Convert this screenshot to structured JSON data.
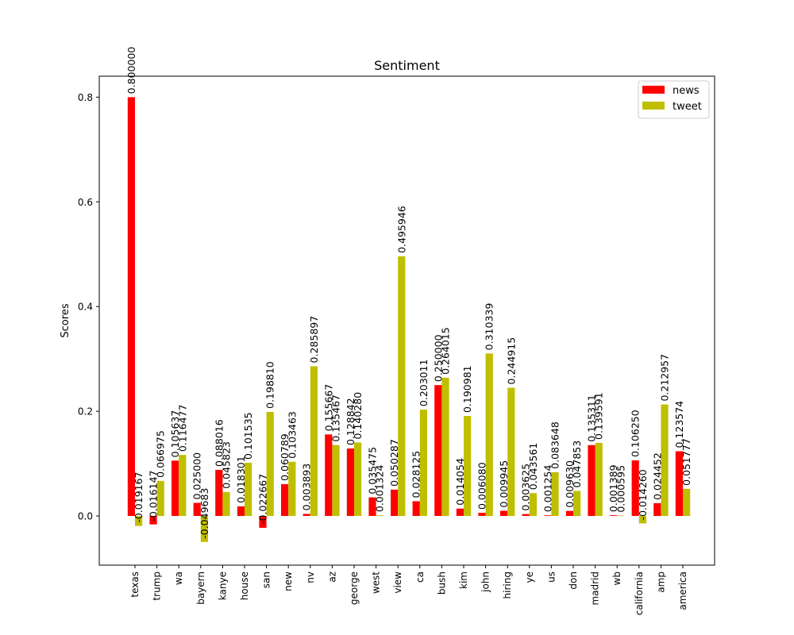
{
  "chart_data": {
    "type": "bar",
    "title": "Sentiment",
    "xlabel": "",
    "ylabel": "Scores",
    "ylim": [
      -0.094,
      0.84
    ],
    "yticks": [
      0.0,
      0.2,
      0.4,
      0.6,
      0.8
    ],
    "ytick_labels": [
      "0.0",
      "0.2",
      "0.4",
      "0.6",
      "0.8"
    ],
    "legend_position": "top-right",
    "grid": false,
    "categories": [
      "texas",
      "trump",
      "wa",
      "bayern",
      "kanye",
      "house",
      "san",
      "new",
      "nv",
      "az",
      "george",
      "west",
      "view",
      "ca",
      "bush",
      "kim",
      "john",
      "hiring",
      "ye",
      "us",
      "don",
      "madrid",
      "wb",
      "california",
      "amp",
      "america"
    ],
    "series": [
      {
        "name": "news",
        "color": "#ff0000",
        "values": [
          0.8,
          -0.016147,
          0.105637,
          0.025,
          0.088016,
          0.018301,
          -0.022667,
          0.060789,
          0.003893,
          0.155667,
          0.128842,
          0.035475,
          0.050287,
          0.028125,
          0.25,
          0.014054,
          0.00608,
          0.009945,
          0.003625,
          0.001254,
          0.00963,
          0.135311,
          0.001389,
          0.10625,
          0.024452,
          0.123574
        ],
        "labels": [
          "0.800000",
          "-0.016147",
          "0.105637",
          "0.025000",
          "0.088016",
          "0.018301",
          "-0.022667",
          "0.060789",
          "0.003893",
          "0.155667",
          "0.128842",
          "0.035475",
          "0.050287",
          "0.028125",
          "0.250000",
          "0.014054",
          "0.006080",
          "0.009945",
          "0.003625",
          "0.001254",
          "0.009630",
          "0.135311",
          "0.001389",
          "0.106250",
          "0.024452",
          "0.123574"
        ]
      },
      {
        "name": "tweet",
        "color": "#bfbf00",
        "values": [
          -0.019167,
          0.066975,
          0.116477,
          -0.049683,
          0.045823,
          0.101535,
          0.19881,
          0.103463,
          0.285897,
          0.135467,
          0.14028,
          0.001324,
          0.495946,
          0.203011,
          0.264015,
          0.190981,
          0.310339,
          0.244915,
          0.043561,
          0.083648,
          0.047853,
          0.139591,
          0.000595,
          -0.01426,
          0.212957,
          0.051777
        ],
        "labels": [
          "-0.019167",
          "0.066975",
          "0.116477",
          "-0.049683",
          "0.045823",
          "0.101535",
          "0.198810",
          "0.103463",
          "0.285897",
          "0.135467",
          "0.140280",
          "0.001324",
          "0.495946",
          "0.203011",
          "0.264015",
          "0.190981",
          "0.310339",
          "0.244915",
          "0.043561",
          "0.083648",
          "0.047853",
          "0.139591",
          "0.000595",
          "-0.014260",
          "0.212957",
          "0.051777"
        ]
      }
    ]
  }
}
